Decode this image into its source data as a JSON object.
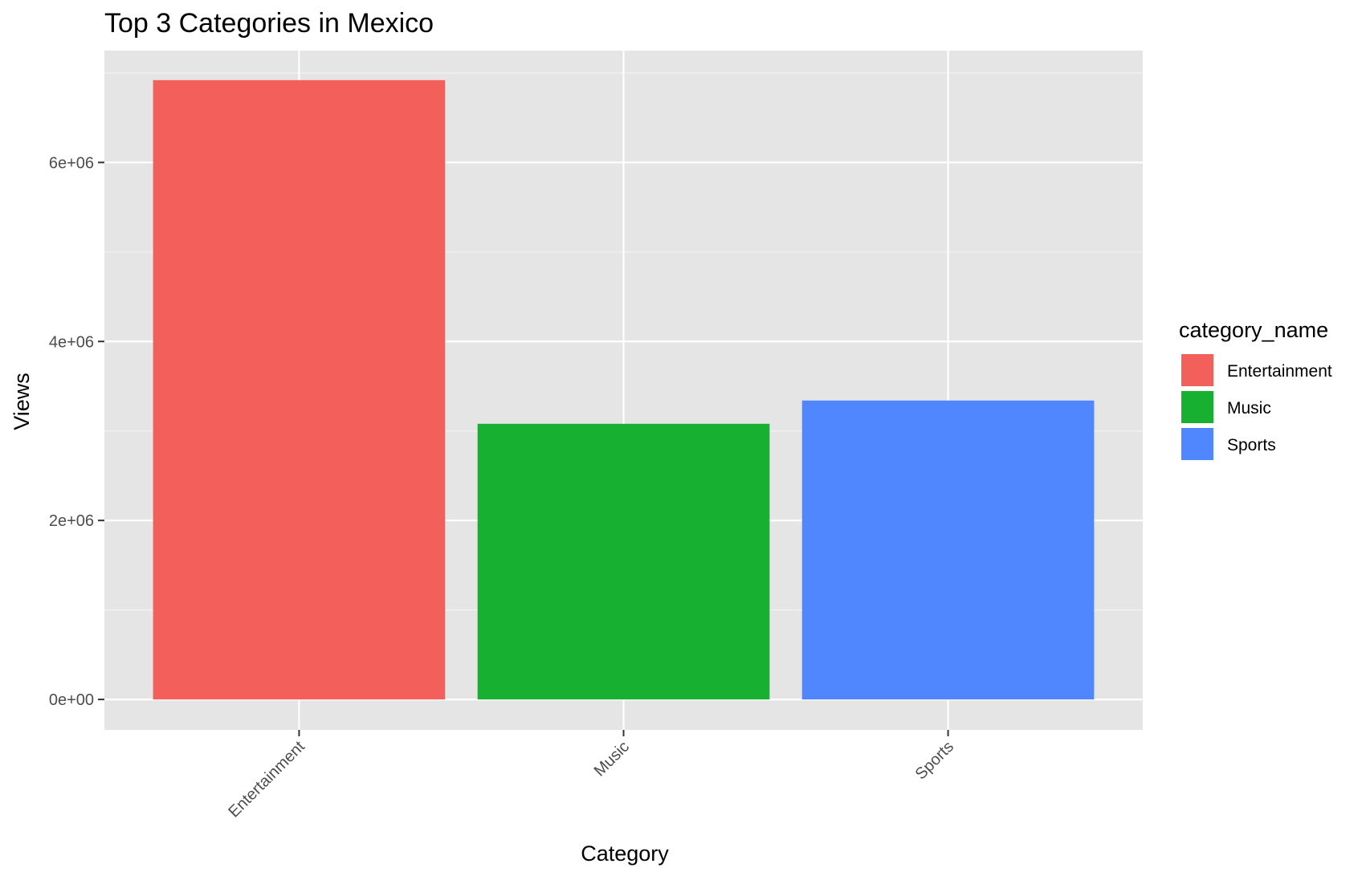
{
  "chart_data": {
    "type": "bar",
    "title": "Top 3 Categories in Mexico",
    "xlabel": "Category",
    "ylabel": "Views",
    "categories": [
      "Entertainment",
      "Music",
      "Sports"
    ],
    "values": [
      6920000,
      3080000,
      3340000
    ],
    "colors": [
      "#F35F5B",
      "#18B030",
      "#5087FE"
    ],
    "ylim": [
      -340000,
      7250000
    ],
    "yticks": [
      0,
      2000000,
      4000000,
      6000000
    ],
    "ytick_labels": [
      "0e+00",
      "2e+06",
      "4e+06",
      "6e+06"
    ],
    "grid": true,
    "legend": {
      "title": "category_name",
      "position": "right",
      "entries": [
        "Entertainment",
        "Music",
        "Sports"
      ]
    }
  }
}
